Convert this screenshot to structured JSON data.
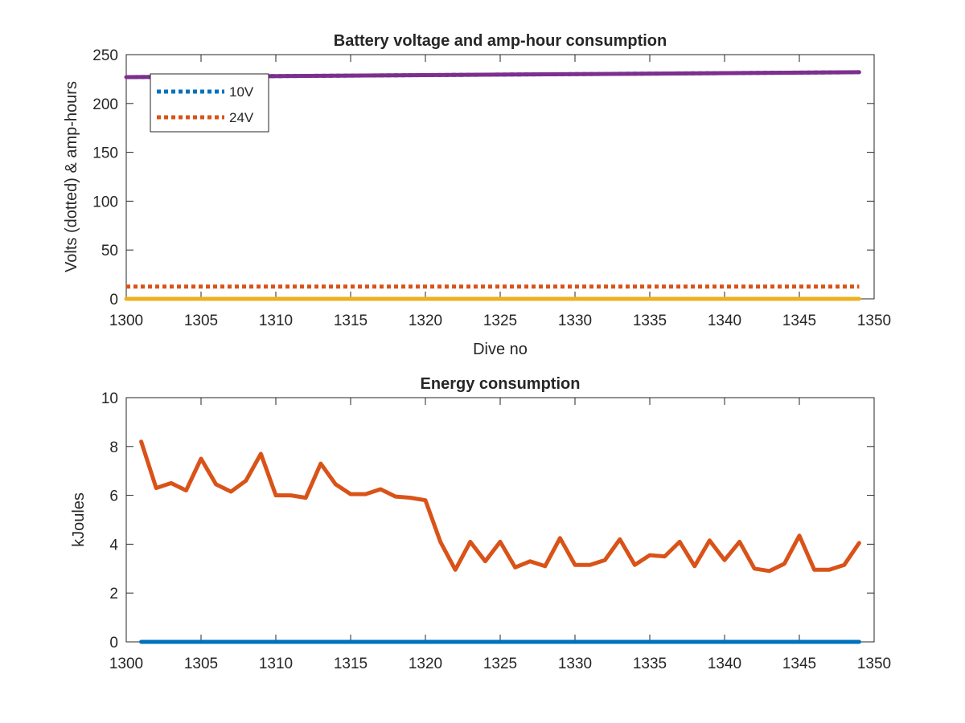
{
  "chart_data": [
    {
      "type": "line",
      "title": "Battery voltage and amp-hour consumption",
      "xlabel": "Dive no",
      "ylabel": "Volts (dotted) & amp-hours",
      "xlim": [
        1300,
        1350
      ],
      "ylim": [
        0,
        250
      ],
      "xticks": [
        1300,
        1305,
        1310,
        1315,
        1320,
        1325,
        1330,
        1335,
        1340,
        1345,
        1350
      ],
      "yticks": [
        0,
        50,
        100,
        150,
        200,
        250
      ],
      "grid": false,
      "legend_position": "top-left",
      "series": [
        {
          "name": "10V",
          "style": "dotted",
          "color": "#0072BD",
          "x": [
            1300,
            1349
          ],
          "values": [
            227,
            232
          ]
        },
        {
          "name": "24V",
          "style": "dotted",
          "color": "#D95319",
          "x": [
            1300,
            1349
          ],
          "values": [
            12.5,
            12.5
          ]
        },
        {
          "style": "solid",
          "color": "#EDB120",
          "x": [
            1300,
            1349
          ],
          "values": [
            0,
            0
          ]
        },
        {
          "style": "solid",
          "color": "#7E2F8E",
          "x": [
            1300,
            1349
          ],
          "values": [
            227,
            232
          ]
        }
      ]
    },
    {
      "type": "line",
      "title": "Energy consumption",
      "xlabel": "",
      "ylabel": "kJoules",
      "xlim": [
        1300,
        1350
      ],
      "ylim": [
        0,
        10
      ],
      "xticks": [
        1300,
        1305,
        1310,
        1315,
        1320,
        1325,
        1330,
        1335,
        1340,
        1345,
        1350
      ],
      "yticks": [
        0,
        2,
        4,
        6,
        8,
        10
      ],
      "grid": false,
      "series": [
        {
          "style": "solid",
          "color": "#0072BD",
          "x": [
            1301,
            1349
          ],
          "values": [
            0,
            0
          ]
        },
        {
          "style": "solid",
          "color": "#D95319",
          "x": [
            1301,
            1302,
            1303,
            1304,
            1305,
            1306,
            1307,
            1308,
            1309,
            1310,
            1311,
            1312,
            1313,
            1314,
            1315,
            1316,
            1317,
            1318,
            1319,
            1320,
            1321,
            1322,
            1323,
            1324,
            1325,
            1326,
            1327,
            1328,
            1329,
            1330,
            1331,
            1332,
            1333,
            1334,
            1335,
            1336,
            1337,
            1338,
            1339,
            1340,
            1341,
            1342,
            1343,
            1344,
            1345,
            1346,
            1347,
            1348,
            1349
          ],
          "values": [
            8.2,
            6.3,
            6.5,
            6.2,
            7.5,
            6.45,
            6.15,
            6.6,
            7.7,
            6.0,
            6.0,
            5.9,
            7.3,
            6.45,
            6.05,
            6.05,
            6.25,
            5.95,
            5.9,
            5.8,
            4.1,
            2.95,
            4.1,
            3.3,
            4.1,
            3.05,
            3.3,
            3.1,
            4.25,
            3.15,
            3.15,
            3.35,
            4.2,
            3.15,
            3.55,
            3.5,
            4.1,
            3.1,
            4.15,
            3.35,
            4.1,
            3.0,
            2.9,
            3.2,
            4.35,
            2.95,
            2.95,
            3.15,
            4.05
          ]
        }
      ]
    }
  ]
}
